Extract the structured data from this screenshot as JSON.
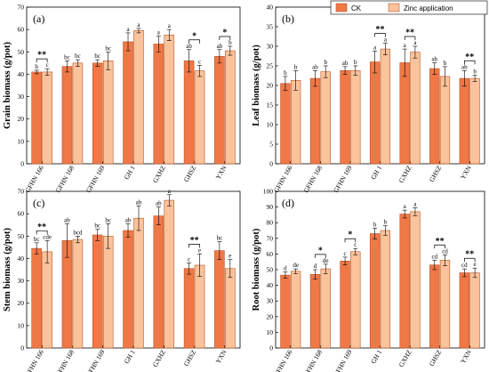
{
  "colors": {
    "ck": "#F07847",
    "zinc": "#FBC39B",
    "edge": "#B85525"
  },
  "legend": {
    "ck": "CK",
    "zinc": "Zinc application",
    "position": "top-right"
  },
  "chart_data": [
    {
      "type": "bar",
      "panel": "(a)",
      "ylabel": "Grain biomass (g/pot)",
      "ylim": [
        0,
        70
      ],
      "yticks": [
        0,
        10,
        20,
        30,
        40,
        50,
        60,
        70
      ],
      "categories": [
        "GFHN 166",
        "GFHN 168",
        "GFHN 169",
        "GH 1",
        "GXHZ",
        "GHSZ",
        "YXN"
      ],
      "series": [
        {
          "name": "CK",
          "values": [
            41,
            43.5,
            45,
            54.5,
            53.5,
            46,
            48
          ],
          "errors": [
            0.8,
            2.5,
            1.5,
            4,
            3.5,
            5,
            3
          ],
          "letters": [
            "b",
            "bc",
            "bc",
            "a",
            "a",
            "ab",
            "ab"
          ]
        },
        {
          "name": "Zinc application",
          "values": [
            41,
            45,
            46,
            59.5,
            57.5,
            41.5,
            50.5
          ],
          "errors": [
            1.5,
            1.5,
            4,
            1,
            2.5,
            2.5,
            2
          ],
          "letters": [
            "c",
            "bc",
            "bc",
            "a",
            "a",
            "c",
            "b"
          ]
        }
      ],
      "significance": [
        {
          "category": "GFHN 166",
          "label": "**"
        },
        {
          "category": "GHSZ",
          "label": "*"
        },
        {
          "category": "YXN",
          "label": "*"
        }
      ]
    },
    {
      "type": "bar",
      "panel": "(b)",
      "ylabel": "Leaf biomass (g/pot)",
      "ylim": [
        0,
        40
      ],
      "yticks": [
        0,
        5,
        10,
        15,
        20,
        25,
        30,
        35,
        40
      ],
      "categories": [
        "GFHN 166",
        "GFHN 168",
        "GFHN 169",
        "GH 1",
        "GXHZ",
        "GHSZ",
        "YXN"
      ],
      "series": [
        {
          "name": "CK",
          "values": [
            20.5,
            21.8,
            23.8,
            26,
            25.8,
            24.3,
            21.8
          ],
          "errors": [
            1.8,
            2,
            1,
            2.8,
            3.5,
            1.5,
            2
          ],
          "letters": [
            "b",
            "ab",
            "ab",
            "a",
            "a",
            "ab",
            "ab"
          ]
        },
        {
          "name": "Zinc application",
          "values": [
            21.3,
            23.5,
            23.8,
            29.3,
            28.5,
            22.3,
            21.8
          ],
          "errors": [
            2.5,
            1.5,
            1.2,
            1.5,
            1.5,
            2.5,
            0.8
          ],
          "letters": [
            "b",
            "b",
            "b",
            "a",
            "a",
            "b",
            "b"
          ]
        }
      ],
      "significance": [
        {
          "category": "GH 1",
          "label": "**"
        },
        {
          "category": "GXHZ",
          "label": "**"
        },
        {
          "category": "YXN",
          "label": "**"
        }
      ]
    },
    {
      "type": "bar",
      "panel": "(c)",
      "ylabel": "Stem biomass (g/pot)",
      "ylim": [
        0,
        70
      ],
      "yticks": [
        0,
        10,
        20,
        30,
        40,
        50,
        60,
        70
      ],
      "categories": [
        "GFHN 166",
        "GFHN 168",
        "GFHN 169",
        "GH 1",
        "GXHZ",
        "GHSZ",
        "YXN"
      ],
      "series": [
        {
          "name": "CK",
          "values": [
            44.5,
            48,
            50.5,
            52.5,
            59,
            35.5,
            43.5
          ],
          "errors": [
            2.5,
            7.5,
            2.5,
            3,
            4,
            2.5,
            4
          ],
          "letters": [
            "bc",
            "ab",
            "bc",
            "ab",
            "ab",
            "c",
            "bc"
          ]
        },
        {
          "name": "Zinc application",
          "values": [
            43,
            48.5,
            50,
            58,
            66,
            37,
            35.5
          ],
          "errors": [
            5,
            1.5,
            5.5,
            5.5,
            2.5,
            5,
            4
          ],
          "letters": [
            "cde",
            "bcd",
            "bc",
            "ab",
            "a",
            "e",
            "e"
          ]
        }
      ],
      "significance": [
        {
          "category": "GFHN 166",
          "label": "**"
        },
        {
          "category": "GHSZ",
          "label": "**"
        }
      ]
    },
    {
      "type": "bar",
      "panel": "(d)",
      "ylabel": "Root biomass (g/pot)",
      "ylim": [
        0,
        100
      ],
      "yticks": [
        0,
        10,
        20,
        30,
        40,
        50,
        60,
        70,
        80,
        90,
        100
      ],
      "categories": [
        "GFHN 166",
        "GFHN 168",
        "GFHN 169",
        "GH 1",
        "GXHZ",
        "GHSZ",
        "YXN"
      ],
      "series": [
        {
          "name": "CK",
          "values": [
            46.5,
            47,
            55.5,
            73,
            85.5,
            53,
            48
          ],
          "errors": [
            2,
            3,
            2.5,
            3.5,
            2.5,
            3,
            2.5
          ],
          "letters": [
            "d",
            "d",
            "c",
            "b",
            "a",
            "cd",
            "cd"
          ]
        },
        {
          "name": "Zinc application",
          "values": [
            49,
            50.5,
            61.5,
            75,
            87,
            56,
            48
          ],
          "errors": [
            1.5,
            3,
            2,
            3,
            2.5,
            3.5,
            3
          ],
          "letters": [
            "de",
            "de",
            "c",
            "b",
            "a",
            "cd",
            "e"
          ]
        }
      ],
      "significance": [
        {
          "category": "GFHN 168",
          "label": "*"
        },
        {
          "category": "GFHN 169",
          "label": "*"
        },
        {
          "category": "GHSZ",
          "label": "**"
        },
        {
          "category": "YXN",
          "label": "**"
        }
      ]
    }
  ]
}
